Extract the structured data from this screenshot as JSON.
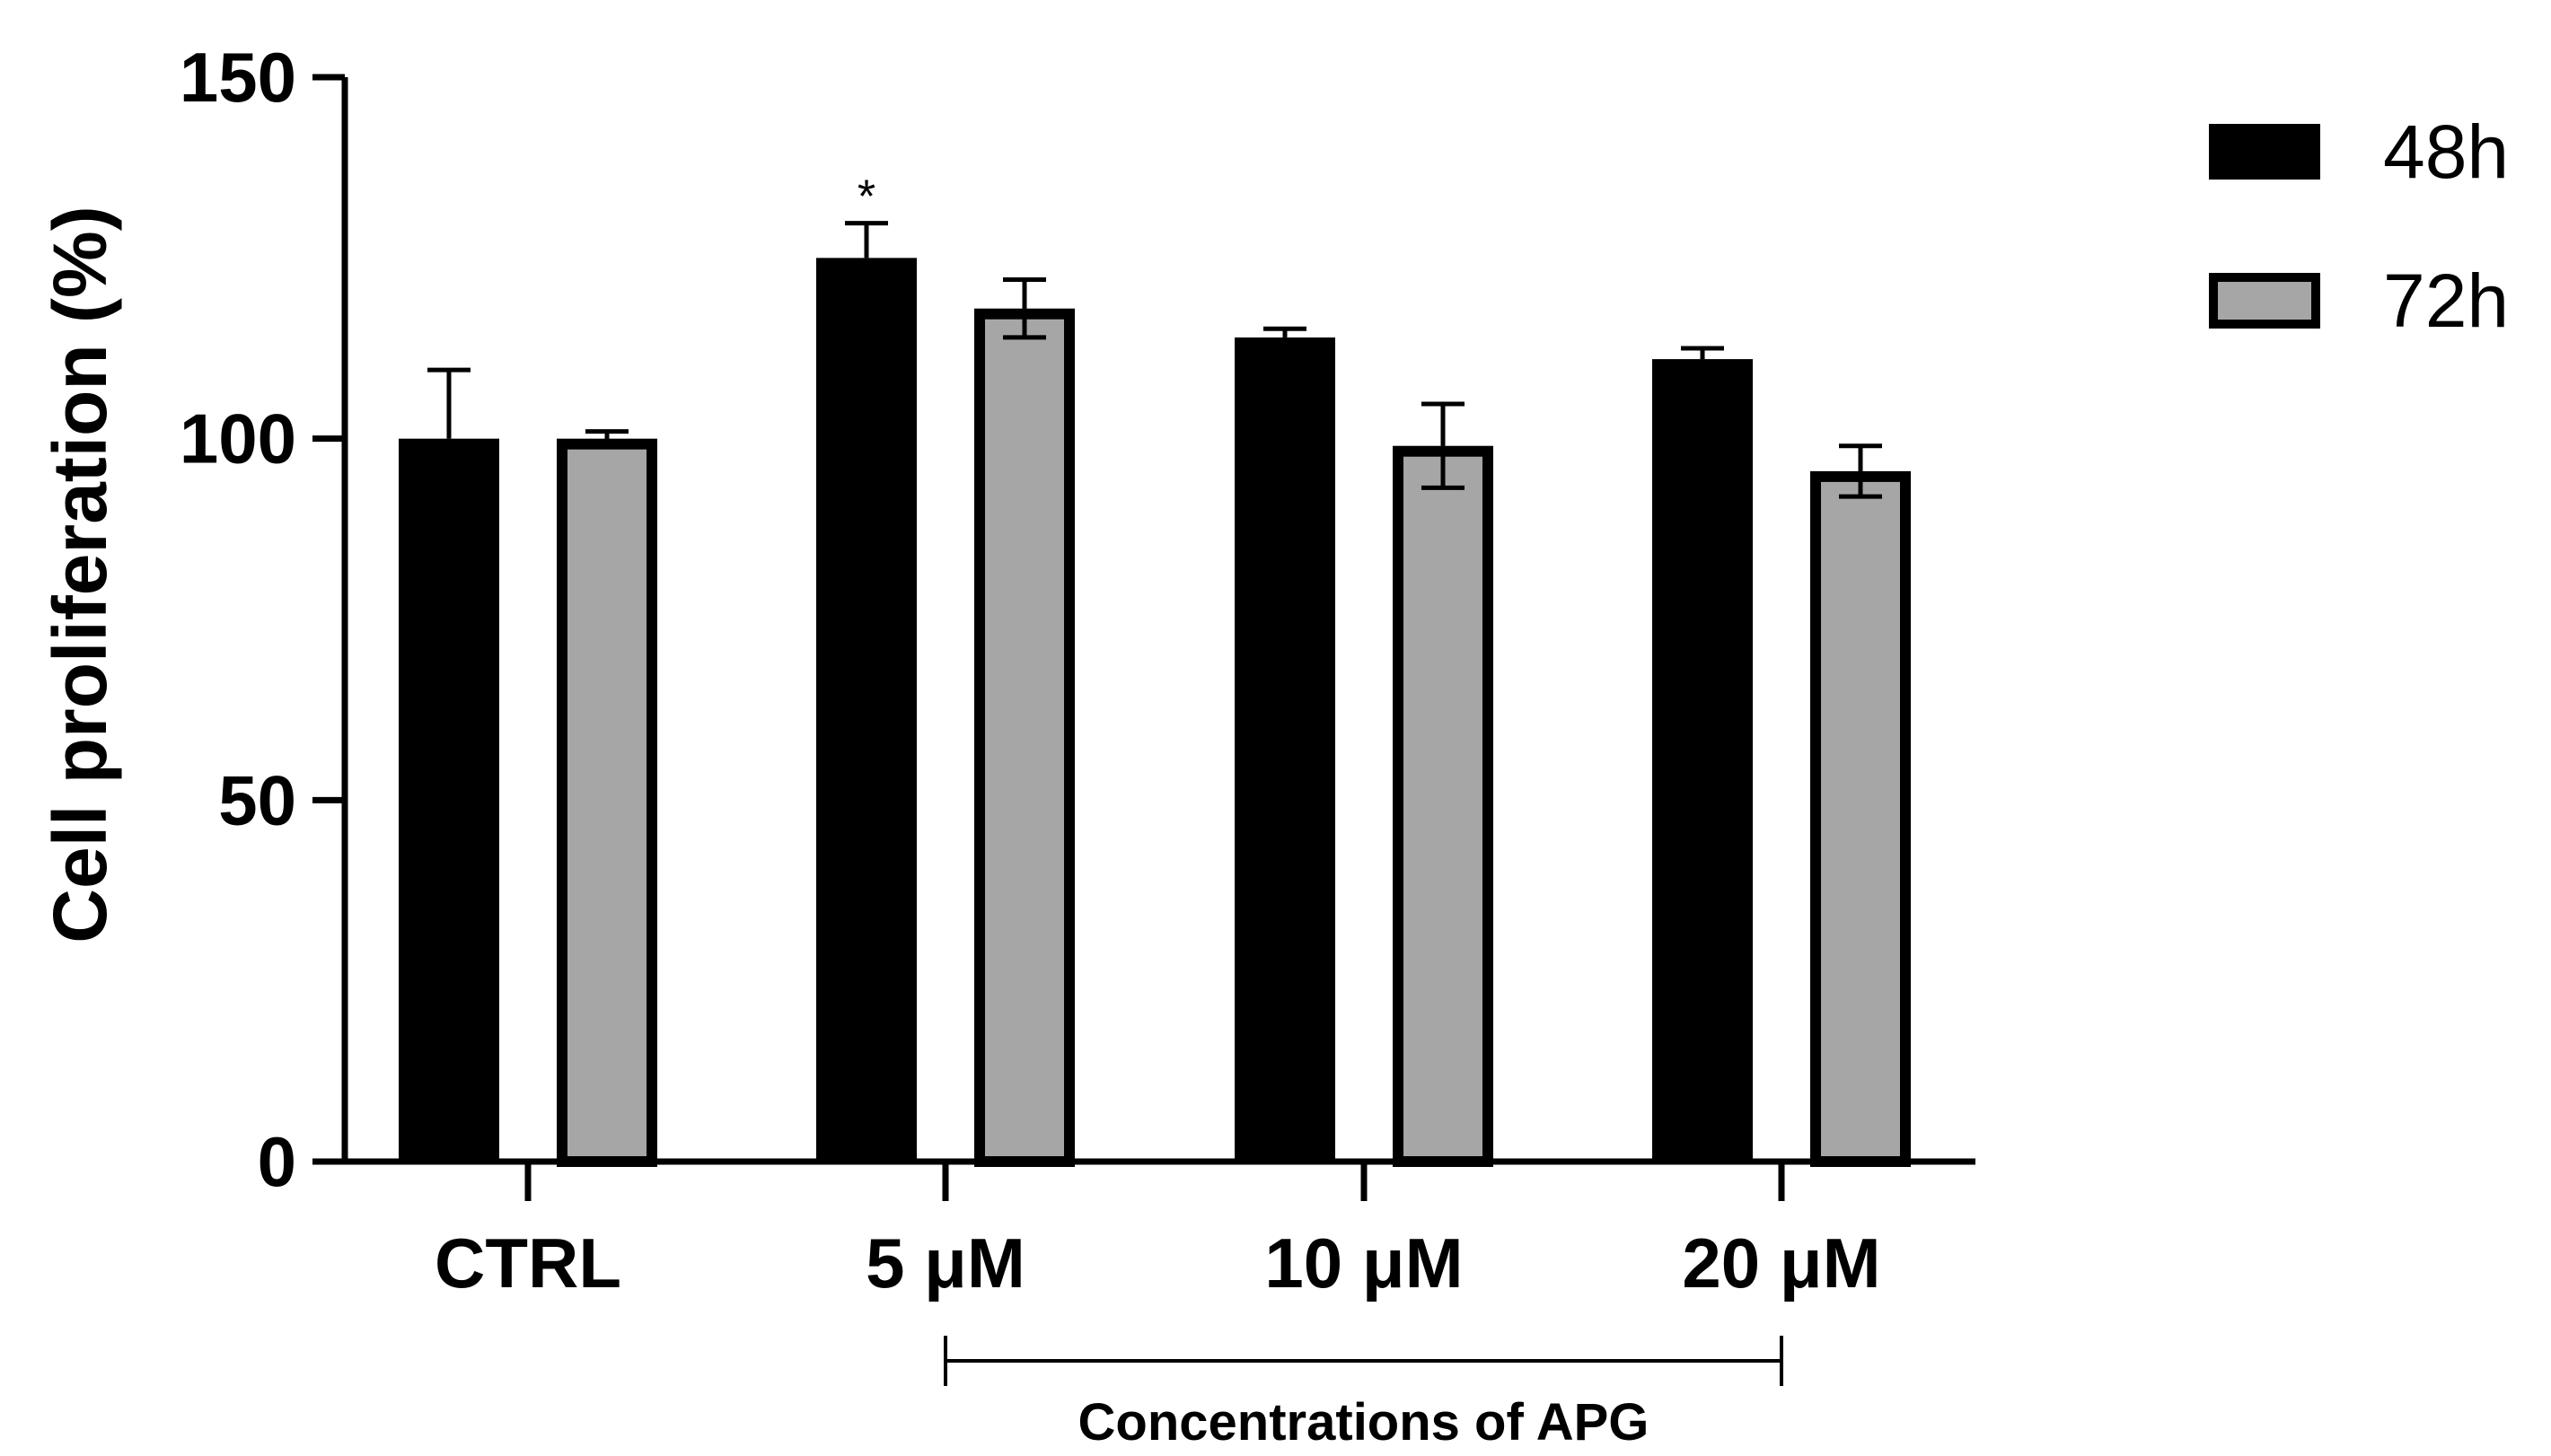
{
  "chart_data": {
    "type": "bar",
    "title": "",
    "xlabel": "",
    "ylabel": "Cell proliferation (%)",
    "ylim": [
      0,
      150
    ],
    "yticks": [
      0,
      50,
      100,
      150
    ],
    "ytick_labels": [
      "0",
      "50",
      "100",
      "150"
    ],
    "categories": [
      "CTRL",
      "5 μM",
      "10 μM",
      "20 μM"
    ],
    "series": [
      {
        "name": "48h",
        "color": "#000000",
        "values": [
          100,
          125,
          114,
          111
        ],
        "errors": [
          9.5,
          4.8,
          1.2,
          1.5
        ]
      },
      {
        "name": "72h",
        "color": "#a6a6a6",
        "values": [
          100,
          118,
          99,
          95.5
        ],
        "errors": [
          1.0,
          4.0,
          5.8,
          3.5
        ]
      }
    ],
    "annotations": [
      {
        "category": "5 μM",
        "series": "48h",
        "text": "*"
      }
    ],
    "group_bracket": {
      "label": "Concentrations of APG",
      "from_category": "5 μM",
      "to_category": "20 μM"
    },
    "legend_position": "top-right",
    "grid": false
  }
}
